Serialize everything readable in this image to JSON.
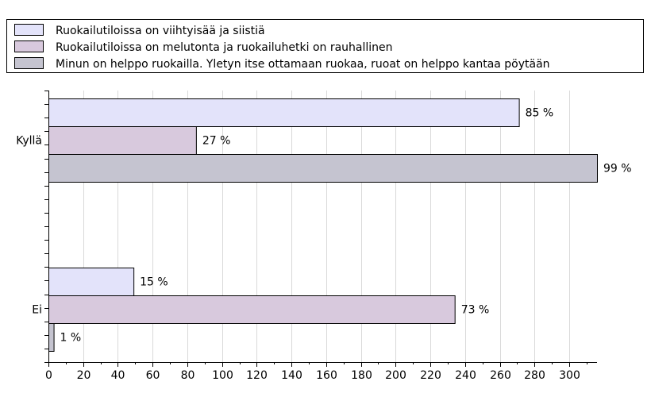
{
  "chart_data": {
    "type": "bar",
    "orientation": "horizontal",
    "title": "",
    "xlabel": "",
    "ylabel": "",
    "categories": [
      "Kyllä",
      "Ei"
    ],
    "series": [
      {
        "name": "Ruokailutiloissa on viihtyisää ja siistiä",
        "color": "#e3e3fa",
        "values": [
          271,
          49
        ],
        "labels": [
          "85 %",
          "15 %"
        ]
      },
      {
        "name": "Ruokailutiloissa on melutonta ja ruokailuhetki on rauhallinen",
        "color": "#d8c9dd",
        "values": [
          85,
          234
        ],
        "labels": [
          "27 %",
          "73 %"
        ]
      },
      {
        "name": "Minun on helppo ruokailla. Yletyn itse ottamaan ruokaa, ruoat on helppo kantaa pöytään",
        "color": "#c5c4d0",
        "values": [
          316,
          3
        ],
        "labels": [
          "99 %",
          "1 %"
        ]
      }
    ],
    "xlim": [
      0,
      316
    ],
    "xticks": [
      0,
      20,
      40,
      60,
      80,
      100,
      120,
      140,
      160,
      180,
      200,
      220,
      240,
      260,
      280,
      300
    ],
    "grid": true,
    "legend": "top"
  }
}
